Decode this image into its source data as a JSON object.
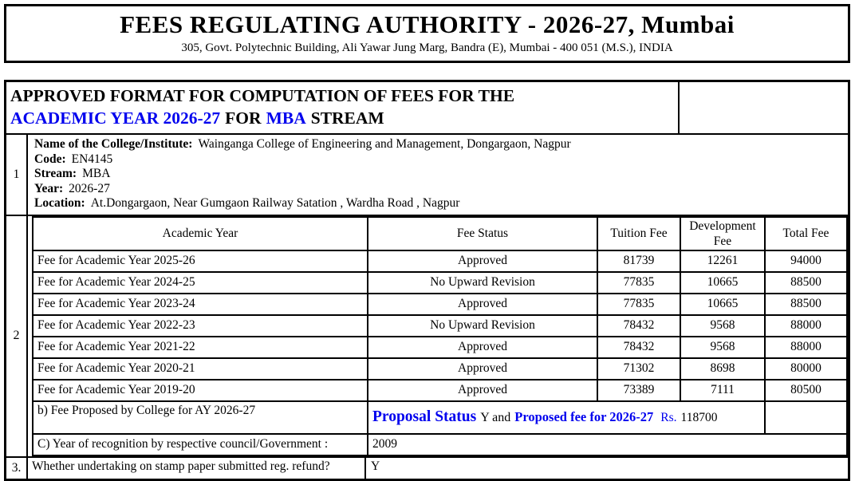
{
  "colors": {
    "accent_blue": "#0000EE",
    "border": "#000000",
    "background": "#FFFFFF"
  },
  "letterhead": {
    "title": "FEES REGULATING AUTHORITY - 2026-27, Mumbai",
    "address": "305, Govt. Polytechnic Building, Ali Yawar Jung Marg, Bandra (E), Mumbai - 400 051 (M.S.), INDIA"
  },
  "banner": {
    "line1": "APPROVED FORMAT FOR COMPUTATION OF FEES FOR THE",
    "academic_year": "ACADEMIC YEAR 2026-27",
    "for_text": "FOR",
    "stream": "MBA",
    "stream_suffix": "STREAM"
  },
  "section1": {
    "row_no": "1",
    "fields": [
      {
        "label": "Name of the College/Institute:",
        "value": "Wainganga College of Engineering and Management, Dongargaon, Nagpur"
      },
      {
        "label": "Code:",
        "value": "EN4145"
      },
      {
        "label": "Stream:",
        "value": "MBA"
      },
      {
        "label": "Year:",
        "value": "2026-27"
      },
      {
        "label": "Location:",
        "value": "At.Dongargaon, Near Gumgaon Railway Satation , Wardha Road , Nagpur"
      }
    ]
  },
  "section2": {
    "row_no": "2",
    "columns": [
      "Academic Year",
      "Fee Status",
      "Tuition Fee",
      "Development Fee",
      "Total Fee"
    ],
    "rows": [
      [
        "Fee for Academic Year 2025-26",
        "Approved",
        "81739",
        "12261",
        "94000"
      ],
      [
        "Fee for Academic Year 2024-25",
        "No Upward Revision",
        "77835",
        "10665",
        "88500"
      ],
      [
        "Fee for Academic Year 2023-24",
        "Approved",
        "77835",
        "10665",
        "88500"
      ],
      [
        "Fee for Academic Year 2022-23",
        "No Upward Revision",
        "78432",
        "9568",
        "88000"
      ],
      [
        "Fee for Academic Year 2021-22",
        "Approved",
        "78432",
        "9568",
        "88000"
      ],
      [
        "Fee for Academic Year 2020-21",
        "Approved",
        "71302",
        "8698",
        "80000"
      ],
      [
        "Fee for Academic Year 2019-20",
        "Approved",
        "73389",
        "7111",
        "80500"
      ]
    ],
    "proposal": {
      "label": "b) Fee Proposed by College for AY 2026-27",
      "status_label": "Proposal Status",
      "status_and": "Y and",
      "fee_label": "Proposed fee for 2026-27",
      "currency": "Rs.",
      "fee_value": "118700"
    },
    "recognition": {
      "label": "C) Year of recognition by respective council/Government :",
      "value": "2009"
    }
  },
  "section3": {
    "row_no": "3.",
    "question": "Whether undertaking on stamp paper submitted reg. refund?",
    "answer": "Y"
  }
}
